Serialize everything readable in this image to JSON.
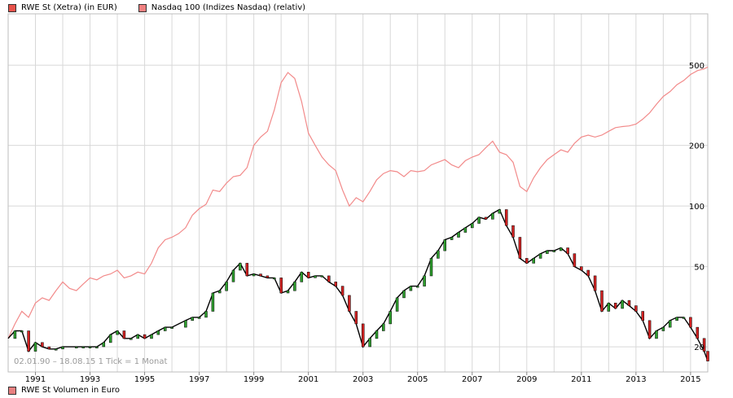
{
  "legend": {
    "items": [
      {
        "label": "RWE St (Xetra) (in EUR)",
        "color": "#e8524a"
      },
      {
        "label": "Nasdaq 100 (Indizes Nasdaq) (relativ)",
        "color": "#f08080"
      }
    ]
  },
  "range_note": "02.01.90 – 18.08.15   1 Tick = 1 Monat",
  "volume_legend": {
    "label": "RWE St Volumen in Euro",
    "color": "#e88080"
  },
  "colors": {
    "rwe_line": "#000000",
    "rwe_up": "#2e9e2e",
    "rwe_down": "#d22222",
    "nasdaq": "#f28a8a",
    "grid": "#d8d8d8"
  },
  "chart_data": {
    "type": "line",
    "title": "",
    "yscale": "log",
    "ylim": [
      15,
      900
    ],
    "xlim": [
      1990.0,
      2015.63
    ],
    "y_ticks": [
      20,
      50,
      100,
      200,
      500
    ],
    "x_ticks": [
      "1991",
      "1993",
      "1995",
      "1997",
      "1999",
      "2001",
      "2003",
      "2005",
      "2007",
      "2009",
      "2011",
      "2013",
      "2015"
    ],
    "grid": true,
    "legend_position": "top-left",
    "series": [
      {
        "name": "RWE St (Xetra) (in EUR)",
        "color": "#000000",
        "points": [
          [
            1990.0,
            22
          ],
          [
            1990.25,
            24
          ],
          [
            1990.5,
            24
          ],
          [
            1990.75,
            19
          ],
          [
            1991.0,
            21
          ],
          [
            1991.25,
            20
          ],
          [
            1991.5,
            19.5
          ],
          [
            1991.75,
            19.5
          ],
          [
            1992.0,
            20
          ],
          [
            1992.5,
            20
          ],
          [
            1992.75,
            20
          ],
          [
            1993.0,
            20
          ],
          [
            1993.25,
            20
          ],
          [
            1993.5,
            21
          ],
          [
            1993.75,
            23
          ],
          [
            1994.0,
            24
          ],
          [
            1994.25,
            22
          ],
          [
            1994.5,
            22
          ],
          [
            1994.75,
            23
          ],
          [
            1995.0,
            22
          ],
          [
            1995.25,
            23
          ],
          [
            1995.5,
            24
          ],
          [
            1995.75,
            25
          ],
          [
            1996.0,
            25
          ],
          [
            1996.5,
            27
          ],
          [
            1996.75,
            28
          ],
          [
            1997.0,
            28
          ],
          [
            1997.25,
            30
          ],
          [
            1997.5,
            37
          ],
          [
            1997.75,
            38
          ],
          [
            1998.0,
            42
          ],
          [
            1998.25,
            48
          ],
          [
            1998.5,
            52
          ],
          [
            1998.75,
            45
          ],
          [
            1999.0,
            46
          ],
          [
            1999.25,
            45
          ],
          [
            1999.5,
            44
          ],
          [
            1999.75,
            44
          ],
          [
            2000.0,
            37
          ],
          [
            2000.25,
            38
          ],
          [
            2000.5,
            42
          ],
          [
            2000.75,
            47
          ],
          [
            2001.0,
            44
          ],
          [
            2001.25,
            45
          ],
          [
            2001.5,
            45
          ],
          [
            2001.75,
            42
          ],
          [
            2002.0,
            40
          ],
          [
            2002.25,
            36
          ],
          [
            2002.5,
            30
          ],
          [
            2002.75,
            26
          ],
          [
            2003.0,
            20
          ],
          [
            2003.25,
            22
          ],
          [
            2003.5,
            24
          ],
          [
            2003.75,
            26
          ],
          [
            2004.0,
            30
          ],
          [
            2004.25,
            35
          ],
          [
            2004.5,
            38
          ],
          [
            2004.75,
            40
          ],
          [
            2005.0,
            40
          ],
          [
            2005.25,
            45
          ],
          [
            2005.5,
            55
          ],
          [
            2005.75,
            60
          ],
          [
            2006.0,
            68
          ],
          [
            2006.25,
            70
          ],
          [
            2006.5,
            74
          ],
          [
            2006.75,
            78
          ],
          [
            2007.0,
            82
          ],
          [
            2007.25,
            88
          ],
          [
            2007.5,
            86
          ],
          [
            2007.75,
            92
          ],
          [
            2008.0,
            96
          ],
          [
            2008.25,
            80
          ],
          [
            2008.5,
            70
          ],
          [
            2008.75,
            55
          ],
          [
            2009.0,
            52
          ],
          [
            2009.25,
            55
          ],
          [
            2009.5,
            58
          ],
          [
            2009.75,
            60
          ],
          [
            2010.0,
            60
          ],
          [
            2010.25,
            62
          ],
          [
            2010.5,
            58
          ],
          [
            2010.75,
            50
          ],
          [
            2011.0,
            48
          ],
          [
            2011.25,
            45
          ],
          [
            2011.5,
            38
          ],
          [
            2011.75,
            30
          ],
          [
            2012.0,
            33
          ],
          [
            2012.25,
            31
          ],
          [
            2012.5,
            34
          ],
          [
            2012.75,
            32
          ],
          [
            2013.0,
            30
          ],
          [
            2013.25,
            27
          ],
          [
            2013.5,
            22
          ],
          [
            2013.75,
            24
          ],
          [
            2014.0,
            25
          ],
          [
            2014.25,
            27
          ],
          [
            2014.5,
            28
          ],
          [
            2014.75,
            28
          ],
          [
            2015.0,
            25
          ],
          [
            2015.25,
            22
          ],
          [
            2015.5,
            19
          ],
          [
            2015.63,
            17
          ]
        ]
      },
      {
        "name": "Nasdaq 100 (Indizes Nasdaq) (relativ)",
        "color": "#f28a8a",
        "points": [
          [
            1990.0,
            22
          ],
          [
            1990.25,
            26
          ],
          [
            1990.5,
            30
          ],
          [
            1990.75,
            28
          ],
          [
            1991.0,
            33
          ],
          [
            1991.25,
            35
          ],
          [
            1991.5,
            34
          ],
          [
            1991.75,
            38
          ],
          [
            1992.0,
            42
          ],
          [
            1992.25,
            39
          ],
          [
            1992.5,
            38
          ],
          [
            1992.75,
            41
          ],
          [
            1993.0,
            44
          ],
          [
            1993.25,
            43
          ],
          [
            1993.5,
            45
          ],
          [
            1993.75,
            46
          ],
          [
            1994.0,
            48
          ],
          [
            1994.25,
            44
          ],
          [
            1994.5,
            45
          ],
          [
            1994.75,
            47
          ],
          [
            1995.0,
            46
          ],
          [
            1995.25,
            52
          ],
          [
            1995.5,
            62
          ],
          [
            1995.75,
            68
          ],
          [
            1996.0,
            70
          ],
          [
            1996.25,
            73
          ],
          [
            1996.5,
            78
          ],
          [
            1996.75,
            90
          ],
          [
            1997.0,
            97
          ],
          [
            1997.25,
            102
          ],
          [
            1997.5,
            120
          ],
          [
            1997.75,
            118
          ],
          [
            1998.0,
            130
          ],
          [
            1998.25,
            140
          ],
          [
            1998.5,
            142
          ],
          [
            1998.75,
            155
          ],
          [
            1999.0,
            200
          ],
          [
            1999.25,
            220
          ],
          [
            1999.5,
            235
          ],
          [
            1999.75,
            300
          ],
          [
            2000.0,
            410
          ],
          [
            2000.25,
            460
          ],
          [
            2000.5,
            430
          ],
          [
            2000.75,
            330
          ],
          [
            2001.0,
            230
          ],
          [
            2001.25,
            200
          ],
          [
            2001.5,
            175
          ],
          [
            2001.75,
            160
          ],
          [
            2002.0,
            150
          ],
          [
            2002.25,
            120
          ],
          [
            2002.5,
            100
          ],
          [
            2002.75,
            110
          ],
          [
            2003.0,
            105
          ],
          [
            2003.25,
            118
          ],
          [
            2003.5,
            135
          ],
          [
            2003.75,
            145
          ],
          [
            2004.0,
            150
          ],
          [
            2004.25,
            148
          ],
          [
            2004.5,
            140
          ],
          [
            2004.75,
            150
          ],
          [
            2005.0,
            148
          ],
          [
            2005.25,
            150
          ],
          [
            2005.5,
            160
          ],
          [
            2005.75,
            165
          ],
          [
            2006.0,
            170
          ],
          [
            2006.25,
            160
          ],
          [
            2006.5,
            155
          ],
          [
            2006.75,
            168
          ],
          [
            2007.0,
            175
          ],
          [
            2007.25,
            180
          ],
          [
            2007.5,
            195
          ],
          [
            2007.75,
            210
          ],
          [
            2008.0,
            185
          ],
          [
            2008.25,
            180
          ],
          [
            2008.5,
            165
          ],
          [
            2008.75,
            125
          ],
          [
            2009.0,
            118
          ],
          [
            2009.25,
            138
          ],
          [
            2009.5,
            155
          ],
          [
            2009.75,
            170
          ],
          [
            2010.0,
            180
          ],
          [
            2010.25,
            190
          ],
          [
            2010.5,
            185
          ],
          [
            2010.75,
            205
          ],
          [
            2011.0,
            220
          ],
          [
            2011.25,
            225
          ],
          [
            2011.5,
            220
          ],
          [
            2011.75,
            225
          ],
          [
            2012.0,
            235
          ],
          [
            2012.25,
            245
          ],
          [
            2012.5,
            248
          ],
          [
            2012.75,
            250
          ],
          [
            2013.0,
            255
          ],
          [
            2013.25,
            270
          ],
          [
            2013.5,
            290
          ],
          [
            2013.75,
            320
          ],
          [
            2014.0,
            350
          ],
          [
            2014.25,
            370
          ],
          [
            2014.5,
            400
          ],
          [
            2014.75,
            420
          ],
          [
            2015.0,
            450
          ],
          [
            2015.25,
            470
          ],
          [
            2015.5,
            480
          ],
          [
            2015.63,
            490
          ]
        ]
      }
    ]
  }
}
